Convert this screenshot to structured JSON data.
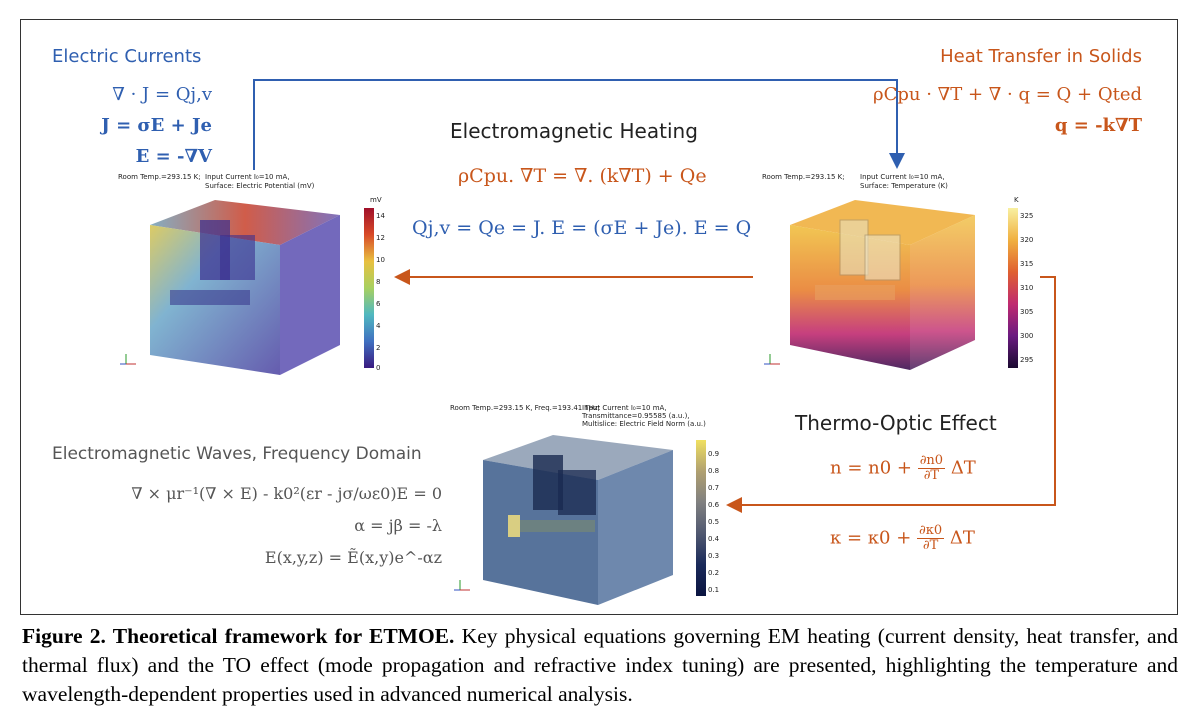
{
  "electric_currents": {
    "title": "Electric Currents",
    "eq1": "∇ · J = Qj,v",
    "eq2": "J = σE + Je",
    "eq3": "E = -∇V"
  },
  "heat_transfer": {
    "title": "Heat Transfer in Solids",
    "eq1": "ρCpu · ∇T + ∇ · q = Q + Qted",
    "eq2": "q = -k∇T"
  },
  "em_heating": {
    "title": "Electromagnetic Heating",
    "eq1": "ρCpu. ∇T = ∇. (k∇T) + Qe",
    "eq2": "Qj,v = Qe = J. E = (σE + Je). E = Q"
  },
  "thermo_optic": {
    "title": "Thermo-Optic Effect",
    "eq1_left": "n = n0 +",
    "eq1_num": "∂n0",
    "eq1_den": "∂T",
    "eq1_right": "ΔT",
    "eq2_left": "κ = κ0 +",
    "eq2_num": "∂κ0",
    "eq2_den": "∂T",
    "eq2_right": "ΔT"
  },
  "em_waves": {
    "title": "Electromagnetic Waves, Frequency Domain",
    "eq1": "∇ × μr⁻¹(∇ × E) - k0²(εr - jσ/ωε0)E = 0",
    "eq2": "α = jβ = -λ",
    "eq3": "E(x,y,z) = Ẽ(x,y)e^-αz"
  },
  "plot_left": {
    "label1": "Room Temp.=293.15 K;",
    "label2": "Input Current I₀=10 mA,",
    "label3": "Surface: Electric Potential (mV)",
    "unit": "mV",
    "ticks": [
      "14",
      "12",
      "10",
      "8",
      "6",
      "4",
      "2",
      "0"
    ]
  },
  "plot_right": {
    "label1": "Room Temp.=293.15 K;",
    "label2": "Input Current I₀=10 mA,",
    "label3": "Surface: Temperature (K)",
    "unit": "K",
    "ticks": [
      "325",
      "320",
      "315",
      "310",
      "305",
      "300",
      "295"
    ]
  },
  "plot_bottom": {
    "label1": "Room Temp.=293.15 K, Freq.=193.41 THz;",
    "label2": "Input Current I₀=10 mA,",
    "label3": "Transmittance=0.95585 (a.u.),",
    "label4": "Multislice: Electric Field Norm (a.u.)",
    "ticks": [
      "0.9",
      "0.8",
      "0.7",
      "0.6",
      "0.5",
      "0.4",
      "0.3",
      "0.2",
      "0.1"
    ]
  },
  "caption": {
    "bold": "Figure 2. Theoretical framework for ETMOE.",
    "text": " Key physical equations governing EM heating (current density, heat transfer, and thermal flux) and the TO effect (mode propagation and refractive index tuning) are presented, highlighting the temperature and wavelength-dependent properties used in advanced numerical analysis."
  }
}
